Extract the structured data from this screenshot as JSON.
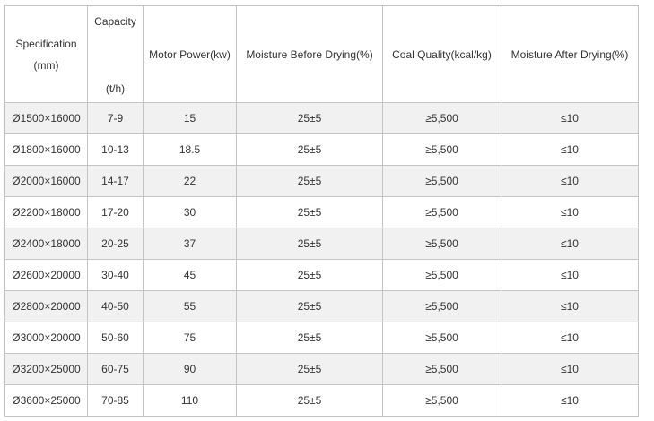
{
  "table": {
    "headers": {
      "specification": "Specification",
      "specification_unit": "(mm)",
      "capacity": "Capacity",
      "capacity_unit": "(t/h)",
      "motor_power": "Motor Power(kw)",
      "moisture_before": "Moisture Before Drying(%)",
      "coal_quality": "Coal Quality(kcal/kg)",
      "moisture_after": "Moisture After Drying(%)"
    },
    "rows": [
      {
        "spec": "Ø1500×16000",
        "capacity": "7-9",
        "power": "15",
        "moisture_before": "25±5",
        "coal_quality": "≥5,500",
        "moisture_after": "≤10"
      },
      {
        "spec": "Ø1800×16000",
        "capacity": "10-13",
        "power": "18.5",
        "moisture_before": "25±5",
        "coal_quality": "≥5,500",
        "moisture_after": "≤10"
      },
      {
        "spec": "Ø2000×16000",
        "capacity": "14-17",
        "power": "22",
        "moisture_before": "25±5",
        "coal_quality": "≥5,500",
        "moisture_after": "≤10"
      },
      {
        "spec": "Ø2200×18000",
        "capacity": "17-20",
        "power": "30",
        "moisture_before": "25±5",
        "coal_quality": "≥5,500",
        "moisture_after": "≤10"
      },
      {
        "spec": "Ø2400×18000",
        "capacity": "20-25",
        "power": "37",
        "moisture_before": "25±5",
        "coal_quality": "≥5,500",
        "moisture_after": "≤10"
      },
      {
        "spec": "Ø2600×20000",
        "capacity": "30-40",
        "power": "45",
        "moisture_before": "25±5",
        "coal_quality": "≥5,500",
        "moisture_after": "≤10"
      },
      {
        "spec": "Ø2800×20000",
        "capacity": "40-50",
        "power": "55",
        "moisture_before": "25±5",
        "coal_quality": "≥5,500",
        "moisture_after": "≤10"
      },
      {
        "spec": "Ø3000×20000",
        "capacity": "50-60",
        "power": "75",
        "moisture_before": "25±5",
        "coal_quality": "≥5,500",
        "moisture_after": "≤10"
      },
      {
        "spec": "Ø3200×25000",
        "capacity": "60-75",
        "power": "90",
        "moisture_before": "25±5",
        "coal_quality": "≥5,500",
        "moisture_after": "≤10"
      },
      {
        "spec": "Ø3600×25000",
        "capacity": "70-85",
        "power": "110",
        "moisture_before": "25±5",
        "coal_quality": "≥5,500",
        "moisture_after": "≤10"
      }
    ]
  }
}
